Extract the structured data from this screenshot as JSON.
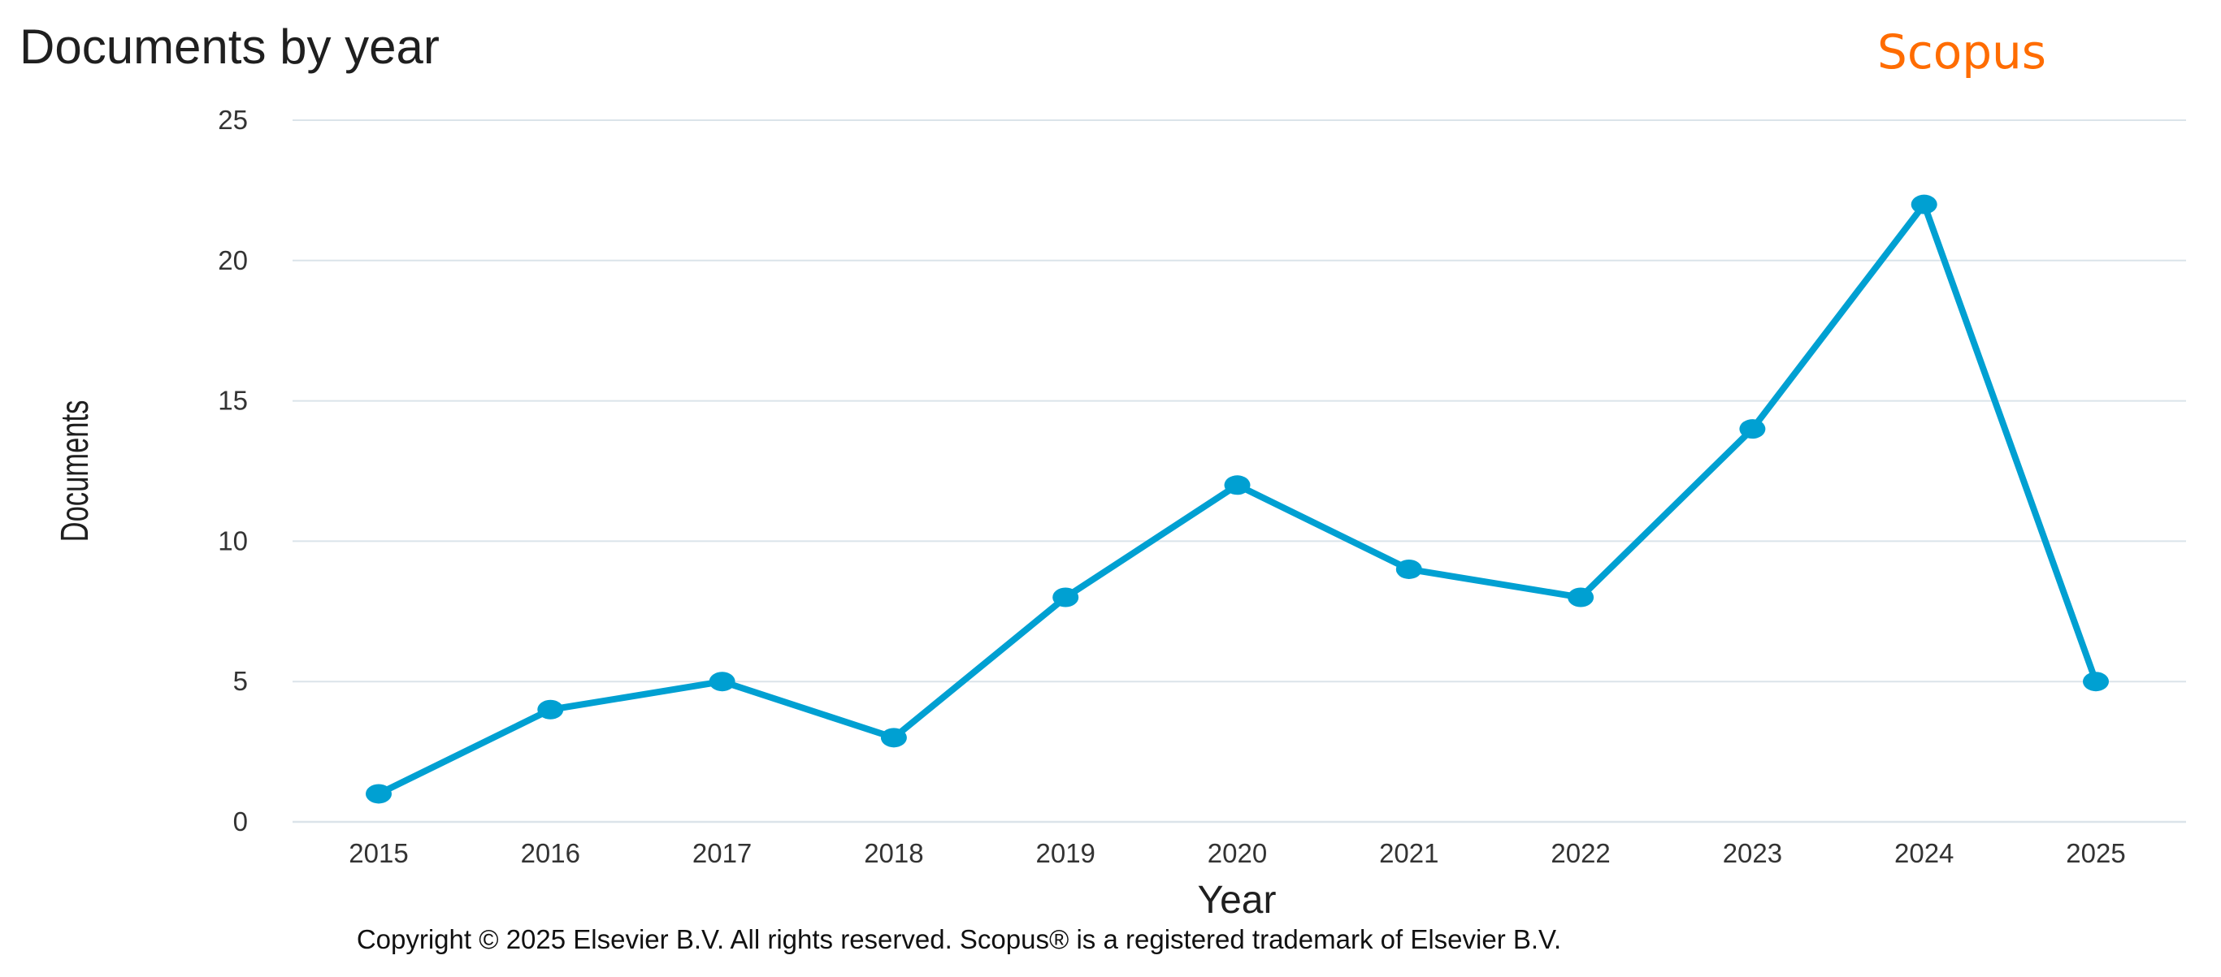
{
  "header": {
    "title": "Documents by year",
    "brand": "Scopus",
    "brand_color": "#ff6c00"
  },
  "footer": {
    "copyright": "Copyright © 2025 Elsevier B.V. All rights reserved. Scopus® is a registered trademark of Elsevier B.V."
  },
  "chart_data": {
    "type": "line",
    "title": "Documents by year",
    "xlabel": "Year",
    "ylabel": "Documents",
    "categories": [
      "2015",
      "2016",
      "2017",
      "2018",
      "2019",
      "2020",
      "2021",
      "2022",
      "2023",
      "2024",
      "2025"
    ],
    "series": [
      {
        "values": [
          1,
          4,
          5,
          3,
          8,
          12,
          9,
          8,
          14,
          22,
          5
        ],
        "color": "#00a0d2"
      }
    ],
    "ylim": [
      0,
      25
    ],
    "yticks": [
      0,
      5,
      10,
      15,
      20,
      25
    ],
    "grid": true,
    "legend": "none",
    "gridline_color": "#dbe4ea"
  }
}
